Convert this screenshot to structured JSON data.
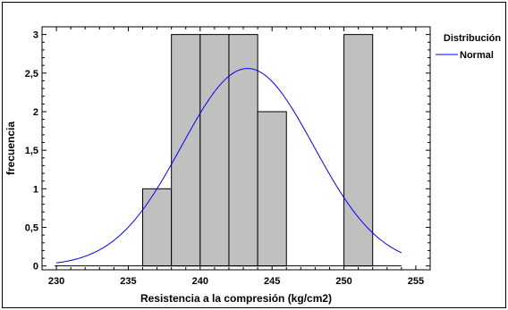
{
  "chart_data": {
    "type": "bar",
    "chart_kind": "histogram with fitted normal curve",
    "xlabel": "Resistencia a la compresión (kg/cm2)",
    "ylabel": "frecuencia",
    "xlim": [
      229,
      256
    ],
    "ylim": [
      -0.05,
      3.1
    ],
    "x_ticks": [
      230,
      235,
      240,
      245,
      250,
      255
    ],
    "x_tick_labels": [
      "230",
      "235",
      "240",
      "245",
      "250",
      "255"
    ],
    "y_ticks": [
      0,
      0.5,
      1,
      1.5,
      2,
      2.5,
      3
    ],
    "y_tick_labels": [
      "0",
      "0,5",
      "1",
      "1,5",
      "2",
      "2,5",
      "3"
    ],
    "bins": [
      {
        "start": 236,
        "end": 238,
        "count": 1
      },
      {
        "start": 238,
        "end": 240,
        "count": 3
      },
      {
        "start": 240,
        "end": 242,
        "count": 3
      },
      {
        "start": 242,
        "end": 244,
        "count": 3
      },
      {
        "start": 244,
        "end": 246,
        "count": 2
      },
      {
        "start": 246,
        "end": 248,
        "count": 0
      },
      {
        "start": 248,
        "end": 250,
        "count": 0
      },
      {
        "start": 250,
        "end": 252,
        "count": 3
      }
    ],
    "curve": {
      "mean": 243.3,
      "sd": 4.6,
      "peak": 2.56,
      "x_range": [
        230,
        254
      ]
    },
    "bar_color": "#c0c0c0",
    "curve_color": "#0000ff",
    "grid": false,
    "legend": {
      "position": "right",
      "title": "Distribución",
      "entries": [
        {
          "label": "Normal",
          "color": "#0000ff"
        }
      ]
    }
  }
}
